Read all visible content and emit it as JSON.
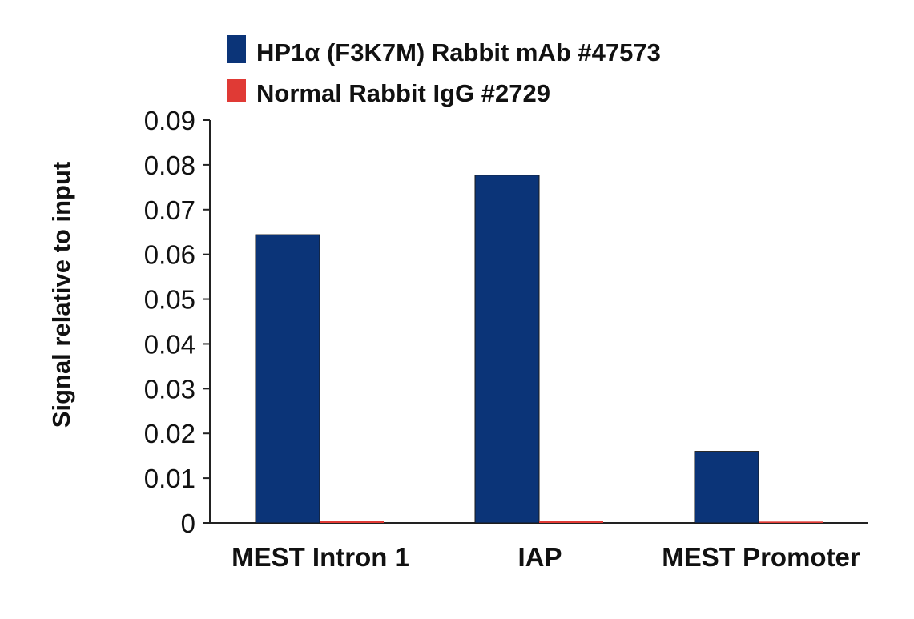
{
  "chart_data": {
    "type": "bar",
    "title": "",
    "xlabel": "",
    "ylabel": "Signal relative to input",
    "ylim": [
      0,
      0.09
    ],
    "yticks": [
      "0",
      "0.01",
      "0.02",
      "0.03",
      "0.04",
      "0.05",
      "0.06",
      "0.07",
      "0.08",
      "0.09"
    ],
    "categories": [
      "MEST Intron 1",
      "IAP",
      "MEST Promoter"
    ],
    "series": [
      {
        "name": "HP1α (F3K7M) Rabbit mAb #47573",
        "color": "#0b3478",
        "values": [
          0.0644,
          0.0777,
          0.016
        ]
      },
      {
        "name": "Normal Rabbit IgG #2729",
        "color": "#e03a35",
        "values": [
          0.0005,
          0.0005,
          0.0003
        ]
      }
    ],
    "legend_position": "top-left",
    "grid": false
  }
}
